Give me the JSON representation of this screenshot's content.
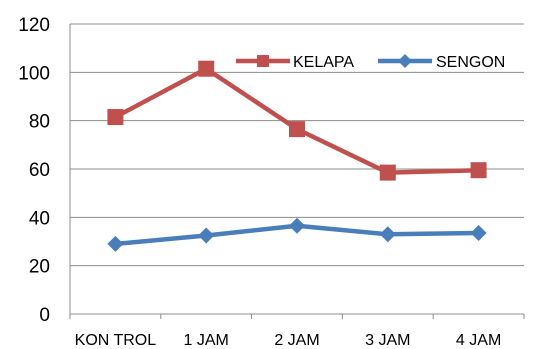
{
  "chart_data": {
    "type": "line",
    "categories": [
      "KON TROL",
      "1 JAM",
      "2 JAM",
      "3 JAM",
      "4 JAM"
    ],
    "series": [
      {
        "name": "KELAPA",
        "values": [
          81.5,
          101.5,
          76.5,
          58.5,
          59.5
        ],
        "color": "#c0504d",
        "marker": "square"
      },
      {
        "name": "SENGON",
        "values": [
          29,
          32.5,
          36.5,
          33,
          33.5
        ],
        "color": "#4a7ebb",
        "marker": "diamond"
      }
    ],
    "ylim": [
      0,
      120
    ],
    "yticks": [
      0,
      20,
      40,
      60,
      80,
      100,
      120
    ],
    "grid": true,
    "legend": "top-right",
    "title": "",
    "xlabel": "",
    "ylabel": ""
  }
}
